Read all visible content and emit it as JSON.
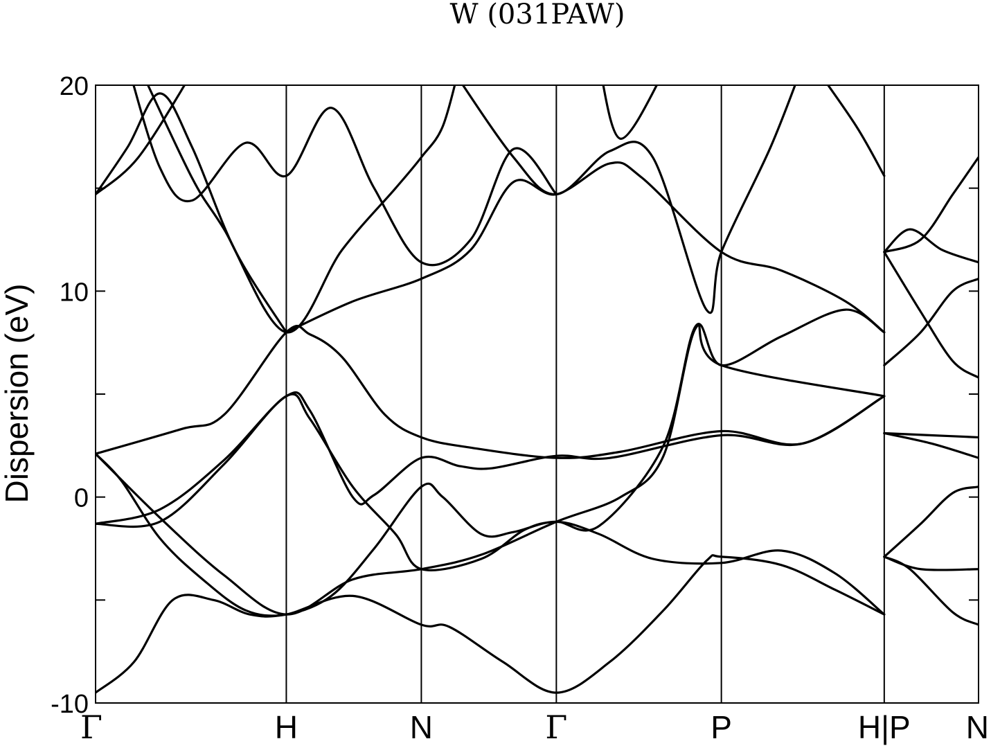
{
  "chart_data": {
    "type": "line",
    "title": "W (031PAW)",
    "ylabel": "Dispersion (eV)",
    "xlabel": "",
    "ylim": [
      -10,
      20
    ],
    "xlim": [
      0,
      4.12
    ],
    "yticks": [
      {
        "value": -10,
        "label": "-10"
      },
      {
        "value": -5,
        "label": ""
      },
      {
        "value": 0,
        "label": "0"
      },
      {
        "value": 5,
        "label": ""
      },
      {
        "value": 10,
        "label": "10"
      },
      {
        "value": 15,
        "label": ""
      },
      {
        "value": 20,
        "label": "20"
      }
    ],
    "kpoints": [
      {
        "x": 0,
        "label": "Γ"
      },
      {
        "x": 0.89,
        "label": "H"
      },
      {
        "x": 1.52,
        "label": "N"
      },
      {
        "x": 2.15,
        "label": "Γ"
      },
      {
        "x": 2.92,
        "label": "P"
      },
      {
        "x": 3.68,
        "label": "H|P"
      },
      {
        "x": 4.12,
        "label": "N"
      }
    ],
    "grid": false,
    "legend": "none",
    "line_color": "#000000",
    "series": [
      {
        "values": [
          [
            0,
            -9.5
          ],
          [
            0.18,
            -8.0
          ],
          [
            0.36,
            -5.0
          ],
          [
            0.55,
            -5.0
          ],
          [
            0.72,
            -5.7
          ],
          [
            0.89,
            -5.7
          ],
          [
            1.2,
            -4.8
          ],
          [
            1.52,
            -6.2
          ],
          [
            1.65,
            -6.3
          ],
          [
            1.9,
            -8.0
          ],
          [
            2.15,
            -9.5
          ],
          [
            2.4,
            -8.0
          ],
          [
            2.65,
            -5.5
          ],
          [
            2.85,
            -3.1
          ],
          [
            2.92,
            -2.9
          ],
          [
            3.2,
            -3.3
          ],
          [
            3.45,
            -4.5
          ],
          [
            3.68,
            -5.7
          ]
        ]
      },
      {
        "values": [
          [
            0,
            2.1
          ],
          [
            0.12,
            0.8
          ],
          [
            0.3,
            -2.0
          ],
          [
            0.5,
            -4.0
          ],
          [
            0.7,
            -5.5
          ],
          [
            0.89,
            -5.7
          ],
          [
            1.1,
            -4.8
          ],
          [
            1.3,
            -2.5
          ],
          [
            1.52,
            0.5
          ],
          [
            1.62,
            0.0
          ],
          [
            1.8,
            -1.8
          ],
          [
            1.95,
            -1.7
          ],
          [
            2.15,
            -1.2
          ],
          [
            2.35,
            -1.8
          ],
          [
            2.6,
            -3.0
          ],
          [
            2.92,
            -3.2
          ],
          [
            3.2,
            -2.6
          ],
          [
            3.45,
            -3.7
          ],
          [
            3.68,
            -5.7
          ]
        ]
      },
      {
        "values": [
          [
            0,
            -1.3
          ],
          [
            0.3,
            -0.6
          ],
          [
            0.6,
            1.8
          ],
          [
            0.89,
            4.9
          ],
          [
            1.0,
            4.2
          ],
          [
            1.2,
            0.0
          ],
          [
            1.3,
            0.1
          ],
          [
            1.52,
            1.9
          ],
          [
            1.7,
            1.5
          ],
          [
            1.85,
            1.4
          ],
          [
            2.15,
            2.0
          ],
          [
            2.4,
            1.9
          ],
          [
            2.92,
            3.0
          ],
          [
            3.3,
            2.6
          ],
          [
            3.68,
            4.9
          ]
        ]
      },
      {
        "values": [
          [
            0,
            -1.3
          ],
          [
            0.3,
            -1.2
          ],
          [
            0.6,
            1.6
          ],
          [
            0.89,
            4.9
          ],
          [
            1.0,
            3.8
          ],
          [
            1.2,
            0.5
          ],
          [
            1.4,
            -1.8
          ],
          [
            1.52,
            -3.5
          ],
          [
            1.8,
            -3.0
          ],
          [
            2.0,
            -1.6
          ],
          [
            2.15,
            -1.2
          ],
          [
            2.35,
            -1.4
          ],
          [
            2.65,
            2.5
          ],
          [
            2.8,
            8.3
          ],
          [
            2.92,
            6.4
          ],
          [
            3.2,
            7.8
          ],
          [
            3.5,
            9.1
          ],
          [
            3.68,
            8.0
          ]
        ]
      },
      {
        "values": [
          [
            0,
            2.1
          ],
          [
            0.4,
            3.3
          ],
          [
            0.6,
            4.0
          ],
          [
            0.89,
            8.0
          ],
          [
            1.0,
            7.9
          ],
          [
            1.15,
            6.8
          ],
          [
            1.35,
            4.0
          ],
          [
            1.52,
            2.9
          ],
          [
            1.75,
            2.4
          ],
          [
            2.15,
            1.9
          ],
          [
            2.45,
            2.2
          ],
          [
            2.92,
            3.2
          ],
          [
            3.3,
            2.6
          ],
          [
            3.68,
            4.9
          ]
        ]
      },
      {
        "values": [
          [
            0,
            2.1
          ],
          [
            0.3,
            -1.0
          ],
          [
            0.6,
            -3.8
          ],
          [
            0.89,
            -5.7
          ],
          [
            1.2,
            -4.0
          ],
          [
            1.52,
            -3.5
          ],
          [
            1.8,
            -2.8
          ],
          [
            2.15,
            -1.2
          ],
          [
            2.45,
            0.0
          ],
          [
            2.65,
            2.0
          ],
          [
            2.8,
            8.2
          ],
          [
            2.92,
            6.4
          ],
          [
            3.68,
            4.9
          ]
        ]
      },
      {
        "values": [
          [
            0,
            14.7
          ],
          [
            0.2,
            16.5
          ],
          [
            0.45,
            20.6
          ]
        ]
      },
      {
        "values": [
          [
            0,
            14.7
          ],
          [
            0.15,
            17.0
          ],
          [
            0.3,
            19.6
          ],
          [
            0.45,
            17.0
          ],
          [
            0.65,
            12.0
          ],
          [
            0.89,
            8.0
          ]
        ]
      },
      {
        "values": [
          [
            0.15,
            21.0
          ],
          [
            0.3,
            16.0
          ],
          [
            0.45,
            14.4
          ],
          [
            0.7,
            17.2
          ],
          [
            0.89,
            15.6
          ],
          [
            1.1,
            18.9
          ],
          [
            1.3,
            15.0
          ],
          [
            1.52,
            11.4
          ],
          [
            1.75,
            12.5
          ],
          [
            1.95,
            16.9
          ],
          [
            2.15,
            14.7
          ]
        ]
      },
      {
        "values": [
          [
            0.2,
            21.0
          ],
          [
            0.45,
            15.5
          ],
          [
            0.6,
            13.0
          ],
          [
            0.89,
            8.0
          ],
          [
            1.15,
            12.0
          ],
          [
            1.4,
            15.0
          ],
          [
            1.52,
            16.5
          ],
          [
            1.62,
            18.0
          ],
          [
            1.7,
            21.0
          ]
        ]
      },
      {
        "values": [
          [
            0.89,
            8.0
          ],
          [
            1.2,
            9.5
          ],
          [
            1.52,
            10.6
          ],
          [
            1.75,
            12.0
          ],
          [
            1.95,
            15.3
          ],
          [
            2.15,
            14.7
          ],
          [
            2.4,
            16.2
          ],
          [
            2.55,
            15.5
          ],
          [
            2.92,
            11.9
          ],
          [
            3.2,
            11.0
          ],
          [
            3.5,
            9.5
          ],
          [
            3.68,
            8.0
          ]
        ]
      },
      {
        "values": [
          [
            1.65,
            21.0
          ],
          [
            1.95,
            16.5
          ],
          [
            2.15,
            14.7
          ],
          [
            2.4,
            16.8
          ],
          [
            2.6,
            16.5
          ],
          [
            2.85,
            9.1
          ],
          [
            2.92,
            11.9
          ],
          [
            3.15,
            17.0
          ],
          [
            3.3,
            21.0
          ]
        ]
      },
      {
        "values": [
          [
            2.35,
            21.0
          ],
          [
            2.45,
            17.4
          ],
          [
            2.65,
            20.6
          ]
        ]
      },
      {
        "values": [
          [
            3.35,
            21.0
          ],
          [
            3.55,
            18.0
          ],
          [
            3.68,
            15.6
          ]
        ]
      },
      {
        "values": [
          [
            3.68,
            11.9
          ],
          [
            3.8,
            13.0
          ],
          [
            3.95,
            12.0
          ],
          [
            4.12,
            11.4
          ]
        ]
      },
      {
        "values": [
          [
            3.68,
            11.9
          ],
          [
            3.85,
            12.5
          ],
          [
            4.0,
            14.7
          ],
          [
            4.12,
            16.5
          ]
        ]
      },
      {
        "values": [
          [
            3.68,
            11.9
          ],
          [
            3.85,
            9.0
          ],
          [
            4.0,
            6.6
          ],
          [
            4.12,
            5.8
          ]
        ]
      },
      {
        "values": [
          [
            3.68,
            6.4
          ],
          [
            3.85,
            8.0
          ],
          [
            4.0,
            10.0
          ],
          [
            4.12,
            10.6
          ]
        ]
      },
      {
        "values": [
          [
            3.68,
            3.1
          ],
          [
            3.9,
            3.0
          ],
          [
            4.12,
            2.9
          ]
        ]
      },
      {
        "values": [
          [
            3.68,
            3.1
          ],
          [
            3.9,
            2.6
          ],
          [
            4.12,
            1.9
          ]
        ]
      },
      {
        "values": [
          [
            3.68,
            -2.9
          ],
          [
            3.85,
            -1.3
          ],
          [
            4.0,
            0.2
          ],
          [
            4.12,
            0.5
          ]
        ]
      },
      {
        "values": [
          [
            3.68,
            -2.9
          ],
          [
            3.85,
            -3.5
          ],
          [
            4.12,
            -3.5
          ]
        ]
      },
      {
        "values": [
          [
            3.68,
            -2.9
          ],
          [
            3.8,
            -3.5
          ],
          [
            4.0,
            -5.6
          ],
          [
            4.12,
            -6.2
          ]
        ]
      }
    ]
  }
}
